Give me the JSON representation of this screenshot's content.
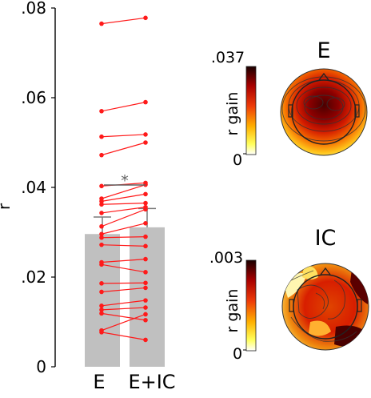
{
  "chart_data": [
    {
      "type": "bar",
      "ylabel": "r",
      "ylim": [
        0,
        0.08
      ],
      "yticks": [
        ".08",
        ".06",
        ".04",
        ".02",
        "0"
      ],
      "ytick_values": [
        0.08,
        0.06,
        0.04,
        0.02,
        0
      ],
      "categories": [
        "E",
        "E+IC"
      ],
      "values": [
        0.0296,
        0.0311
      ],
      "errors": [
        0.0038,
        0.0042
      ],
      "significance_marker": "*",
      "bar_color": "#c0c0c0",
      "line_color": "#ff1a1a",
      "paired_points": [
        [
          0.0765,
          0.0778
        ],
        [
          0.057,
          0.059
        ],
        [
          0.0513,
          0.0518
        ],
        [
          0.0472,
          0.05
        ],
        [
          0.0403,
          0.041
        ],
        [
          0.0375,
          0.0406
        ],
        [
          0.0369,
          0.0385
        ],
        [
          0.0362,
          0.0365
        ],
        [
          0.0343,
          0.0356
        ],
        [
          0.0313,
          0.0351
        ],
        [
          0.0296,
          0.032
        ],
        [
          0.0288,
          0.029
        ],
        [
          0.0272,
          0.0269
        ],
        [
          0.0233,
          0.024
        ],
        [
          0.0228,
          0.0211
        ],
        [
          0.0186,
          0.0187
        ],
        [
          0.0167,
          0.0176
        ],
        [
          0.0136,
          0.0148
        ],
        [
          0.0127,
          0.0132
        ],
        [
          0.0119,
          0.0104
        ],
        [
          0.0081,
          0.0117
        ],
        [
          0.0077,
          0.006
        ]
      ]
    },
    {
      "type": "heatmap",
      "title": "E",
      "colorbar_label": "r gain",
      "colorbar_max": ".037",
      "colorbar_min": "0"
    },
    {
      "type": "heatmap",
      "title": "IC",
      "colorbar_label": "r gain",
      "colorbar_max": ".003",
      "colorbar_min": "0"
    }
  ]
}
